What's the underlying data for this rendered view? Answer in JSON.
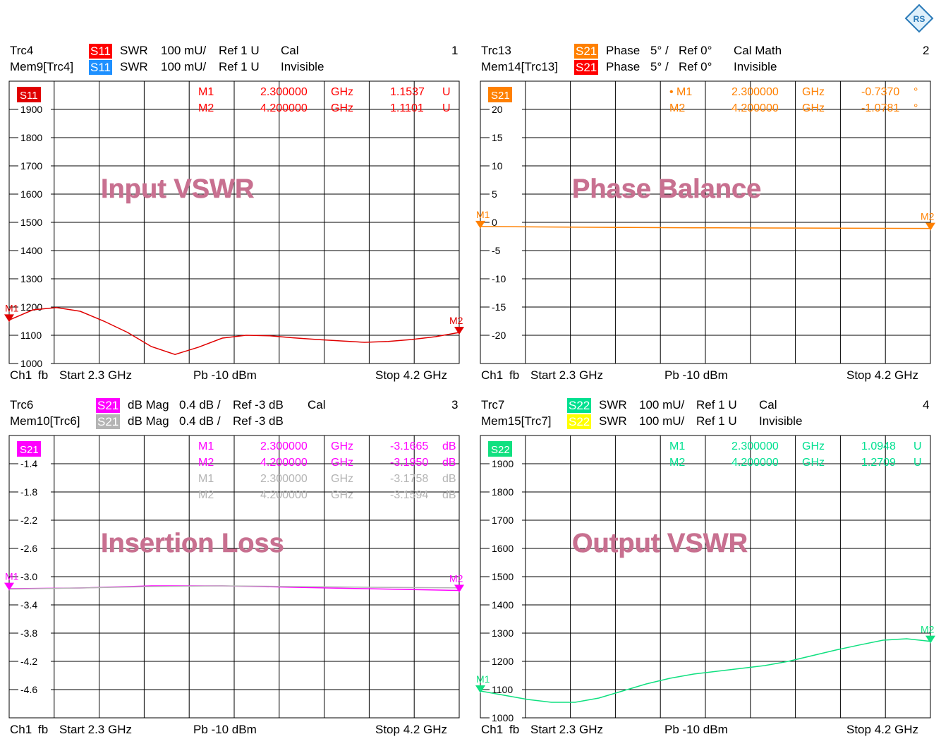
{
  "logo": {
    "text": "RS"
  },
  "panels": [
    {
      "number": "1",
      "trace_header": {
        "row1": {
          "name": "Trc4",
          "badge": "S11",
          "badge_color": "#ff0000",
          "format": "SWR",
          "scale": "100 mU/",
          "ref": "Ref 1 U",
          "status": "Cal"
        },
        "row2": {
          "name": "Mem9[Trc4]",
          "badge": "S11",
          "badge_color": "#1e90ff",
          "format": "SWR",
          "scale": "100 mU/",
          "ref": "Ref 1 U",
          "status": "Invisible"
        }
      },
      "footer": {
        "channel": "Ch1",
        "mode": "fb",
        "start": "Start  2.3 GHz",
        "power": "Pb   -10 dBm",
        "stop": "Stop  4.2 GHz"
      },
      "title": "Input VSWR",
      "markers": [
        {
          "name": "M1",
          "freq": "2.300000",
          "unit": "GHz",
          "value": "1.1537",
          "vunit": "U",
          "color": "#ff0000"
        },
        {
          "name": "M2",
          "freq": "4.200000",
          "unit": "GHz",
          "value": "1.1101",
          "vunit": "U",
          "color": "#ff0000"
        }
      ]
    },
    {
      "number": "2",
      "trace_header": {
        "row1": {
          "name": "Trc13",
          "badge": "S21",
          "badge_color": "#ff8000",
          "format": "Phase",
          "scale": "5° /",
          "ref": "Ref 0°",
          "status": "Cal Math"
        },
        "row2": {
          "name": "Mem14[Trc13]",
          "badge": "S21",
          "badge_color": "#ff0000",
          "format": "Phase",
          "scale": "5° /",
          "ref": "Ref 0°",
          "status": "Invisible"
        }
      },
      "footer": {
        "channel": "Ch1",
        "mode": "fb",
        "start": "Start  2.3 GHz",
        "power": "Pb   -10 dBm",
        "stop": "Stop  4.2 GHz"
      },
      "title": "Phase Balance",
      "markers": [
        {
          "name": "• M1",
          "freq": "2.300000",
          "unit": "GHz",
          "value": "-0.7370",
          "vunit": "°",
          "color": "#ff8000"
        },
        {
          "name": "M2",
          "freq": "4.200000",
          "unit": "GHz",
          "value": "-1.0781",
          "vunit": "°",
          "color": "#ff8000"
        }
      ]
    },
    {
      "number": "3",
      "trace_header": {
        "row1": {
          "name": "Trc6",
          "badge": "S21",
          "badge_color": "#ff00ff",
          "format": "dB Mag",
          "scale": "0.4 dB /",
          "ref": "Ref -3 dB",
          "status": "Cal"
        },
        "row2": {
          "name": "Mem10[Trc6]",
          "badge": "S21",
          "badge_color": "#b4b4b4",
          "format": "dB Mag",
          "scale": "0.4 dB /",
          "ref": "Ref -3 dB",
          "status": ""
        }
      },
      "footer": {
        "channel": "Ch1",
        "mode": "fb",
        "start": "Start  2.3 GHz",
        "power": "Pb   -10 dBm",
        "stop": "Stop  4.2 GHz"
      },
      "title": "Insertion Loss",
      "markers": [
        {
          "name": "M1",
          "freq": "2.300000",
          "unit": "GHz",
          "value": "-3.1665",
          "vunit": "dB",
          "color": "#ff00ff"
        },
        {
          "name": "M2",
          "freq": "4.200000",
          "unit": "GHz",
          "value": "-3.1950",
          "vunit": "dB",
          "color": "#ff00ff"
        },
        {
          "name": "M1",
          "freq": "2.300000",
          "unit": "GHz",
          "value": "-3.1758",
          "vunit": "dB",
          "color": "#b4b4b4"
        },
        {
          "name": "M2",
          "freq": "4.200000",
          "unit": "GHz",
          "value": "-3.1594",
          "vunit": "dB",
          "color": "#b4b4b4"
        }
      ]
    },
    {
      "number": "4",
      "trace_header": {
        "row1": {
          "name": "Trc7",
          "badge": "S22",
          "badge_color": "#00e090",
          "format": "SWR",
          "scale": "100 mU/",
          "ref": "Ref 1 U",
          "status": "Cal"
        },
        "row2": {
          "name": "Mem15[Trc7]",
          "badge": "S22",
          "badge_color": "#ffff00",
          "format": "SWR",
          "scale": "100 mU/",
          "ref": "Ref 1 U",
          "status": "Invisible"
        }
      },
      "footer": {
        "channel": "Ch1",
        "mode": "fb",
        "start": "Start  2.3 GHz",
        "power": "Pb   -10 dBm",
        "stop": "Stop  4.2 GHz"
      },
      "title": "Output VSWR",
      "markers": [
        {
          "name": "M1",
          "freq": "2.300000",
          "unit": "GHz",
          "value": "1.0948",
          "vunit": "U",
          "color": "#00e090"
        },
        {
          "name": "M2",
          "freq": "4.200000",
          "unit": "GHz",
          "value": "1.2709",
          "vunit": "U",
          "color": "#00e090"
        }
      ]
    }
  ],
  "chart_data": [
    {
      "type": "line",
      "title": "Input VSWR",
      "trace_label": "S11",
      "color": "#e00000",
      "xlim": [
        2.3,
        4.2
      ],
      "x_unit": "GHz",
      "ylim": [
        1000,
        2000
      ],
      "yticks": [
        1000,
        1100,
        1200,
        1300,
        1400,
        1500,
        1600,
        1700,
        1800,
        1900
      ],
      "ytick_labels": [
        "1000",
        "1100",
        "1200",
        "1300",
        "1400",
        "1500",
        "1600",
        "1700",
        "1800",
        "1900"
      ],
      "grid": true,
      "series": [
        {
          "x": [
            2.3,
            2.4,
            2.5,
            2.6,
            2.7,
            2.8,
            2.9,
            3.0,
            3.1,
            3.2,
            3.3,
            3.4,
            3.5,
            3.6,
            3.7,
            3.8,
            3.9,
            4.0,
            4.1,
            4.2
          ],
          "y": [
            1154,
            1190,
            1198,
            1185,
            1150,
            1110,
            1060,
            1032,
            1058,
            1090,
            1100,
            1098,
            1091,
            1085,
            1080,
            1075,
            1078,
            1085,
            1095,
            1110
          ]
        }
      ],
      "markers": [
        {
          "name": "M1",
          "x": 2.3,
          "y": 1154
        },
        {
          "name": "M2",
          "x": 4.2,
          "y": 1110
        }
      ]
    },
    {
      "type": "line",
      "title": "Phase Balance",
      "trace_label": "S21",
      "color": "#ff8000",
      "xlim": [
        2.3,
        4.2
      ],
      "x_unit": "GHz",
      "ylim": [
        -25,
        25
      ],
      "yticks": [
        -20,
        -15,
        -10,
        -5,
        0,
        5,
        10,
        15,
        20
      ],
      "ytick_labels": [
        "-20",
        "-15",
        "-10",
        "-5",
        "0",
        "5",
        "10",
        "15",
        "20"
      ],
      "grid": true,
      "series": [
        {
          "x": [
            2.3,
            2.6,
            2.9,
            3.2,
            3.5,
            3.8,
            4.2
          ],
          "y": [
            -0.74,
            -0.82,
            -0.9,
            -0.96,
            -1.0,
            -1.04,
            -1.08
          ]
        }
      ],
      "markers": [
        {
          "name": "M1",
          "x": 2.3,
          "y": -0.74
        },
        {
          "name": "M2",
          "x": 4.2,
          "y": -1.08
        }
      ]
    },
    {
      "type": "line",
      "title": "Insertion Loss",
      "trace_label": "S21",
      "color": "#ff00ff",
      "xlim": [
        2.3,
        4.2
      ],
      "x_unit": "GHz",
      "ylim": [
        -5.0,
        -1.0
      ],
      "yticks": [
        -4.6,
        -4.2,
        -3.8,
        -3.4,
        -3.0,
        -2.6,
        -2.2,
        -1.8,
        -1.4
      ],
      "ytick_labels": [
        "-4.6",
        "-4.2",
        "-3.8",
        "-3.4",
        "-3.0",
        "-2.6",
        "-2.2",
        "-1.8",
        "-1.4"
      ],
      "grid": true,
      "series": [
        {
          "x": [
            2.3,
            2.6,
            2.9,
            3.2,
            3.5,
            3.8,
            4.2
          ],
          "y": [
            -3.17,
            -3.16,
            -3.13,
            -3.13,
            -3.15,
            -3.17,
            -3.195
          ]
        },
        {
          "x": [
            2.3,
            2.6,
            2.9,
            3.2,
            3.5,
            3.8,
            4.2
          ],
          "y": [
            -3.176,
            -3.16,
            -3.14,
            -3.13,
            -3.14,
            -3.15,
            -3.159
          ],
          "color": "#b4b4b4"
        }
      ],
      "markers": [
        {
          "name": "M1",
          "x": 2.3,
          "y": -3.1665
        },
        {
          "name": "M2",
          "x": 4.2,
          "y": -3.195
        }
      ]
    },
    {
      "type": "line",
      "title": "Output VSWR",
      "trace_label": "S22",
      "color": "#10e080",
      "xlim": [
        2.3,
        4.2
      ],
      "x_unit": "GHz",
      "ylim": [
        1000,
        2000
      ],
      "yticks": [
        1000,
        1100,
        1200,
        1300,
        1400,
        1500,
        1600,
        1700,
        1800,
        1900
      ],
      "ytick_labels": [
        "1000",
        "1100",
        "1200",
        "1300",
        "1400",
        "1500",
        "1600",
        "1700",
        "1800",
        "1900"
      ],
      "grid": true,
      "series": [
        {
          "x": [
            2.3,
            2.4,
            2.5,
            2.6,
            2.7,
            2.8,
            2.9,
            3.0,
            3.1,
            3.2,
            3.3,
            3.4,
            3.5,
            3.6,
            3.7,
            3.8,
            3.9,
            4.0,
            4.1,
            4.2
          ],
          "y": [
            1095,
            1080,
            1065,
            1055,
            1055,
            1070,
            1095,
            1120,
            1140,
            1155,
            1165,
            1175,
            1185,
            1200,
            1220,
            1240,
            1258,
            1275,
            1280,
            1271
          ]
        }
      ],
      "markers": [
        {
          "name": "M1",
          "x": 2.3,
          "y": 1095
        },
        {
          "name": "M2",
          "x": 4.2,
          "y": 1271
        }
      ]
    }
  ]
}
